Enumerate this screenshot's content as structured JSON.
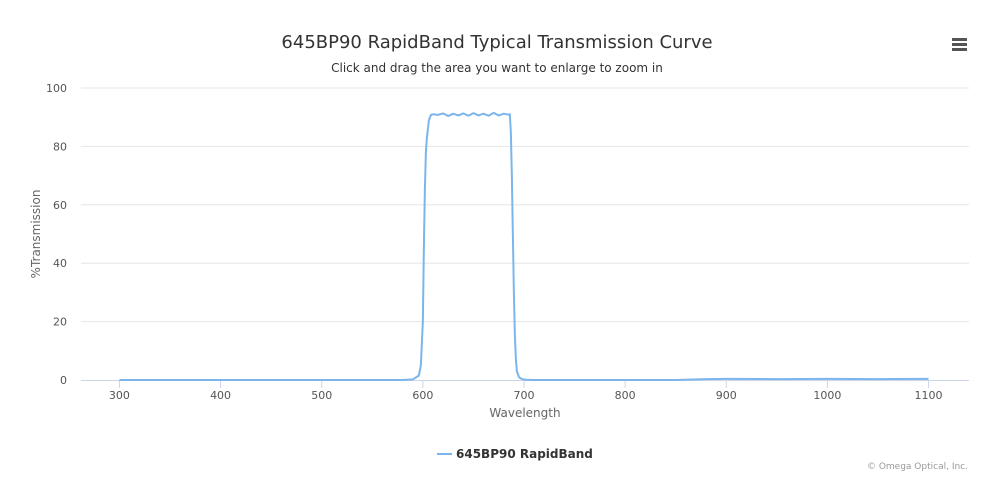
{
  "chart_data": {
    "type": "line",
    "title": "645BP90 RapidBand Typical Transmission Curve",
    "subtitle": "Click and drag the area you want to enlarge to zoom in",
    "xlabel": "Wavelength",
    "ylabel": "%Transmission",
    "xlim": [
      262,
      1140
    ],
    "ylim": [
      0,
      100
    ],
    "x_ticks": [
      300,
      400,
      500,
      600,
      700,
      800,
      900,
      1000,
      1100
    ],
    "y_ticks": [
      0,
      20,
      40,
      60,
      80,
      100
    ],
    "grid": "horizontal",
    "legend": "bottom-center",
    "series": [
      {
        "name": "645BP90 RapidBand",
        "color": "#7cb5ec",
        "x": [
          300,
          400,
          500,
          580,
          590,
          596,
          598,
          600,
          601,
          602,
          603,
          604,
          605,
          606,
          608,
          610,
          615,
          620,
          625,
          630,
          635,
          640,
          645,
          650,
          655,
          660,
          665,
          670,
          675,
          680,
          684,
          686,
          687,
          688,
          689,
          690,
          691,
          692,
          693,
          695,
          698,
          702,
          710,
          750,
          800,
          850,
          880,
          900,
          950,
          1000,
          1050,
          1100
        ],
        "y": [
          0,
          0,
          0,
          0,
          0.2,
          1.5,
          5,
          20,
          45,
          65,
          78,
          83,
          86,
          89,
          90.8,
          91,
          90.8,
          91.3,
          90.4,
          91.2,
          90.6,
          91.3,
          90.5,
          91.4,
          90.6,
          91.2,
          90.5,
          91.5,
          90.6,
          91.2,
          90.9,
          91,
          85,
          70,
          50,
          30,
          15,
          7,
          3,
          1,
          0.3,
          0.1,
          0,
          0,
          0,
          0,
          0.3,
          0.4,
          0.3,
          0.4,
          0.3,
          0.4
        ]
      }
    ]
  },
  "credits": "© Omega Optical, Inc.",
  "menu_icon": "hamburger-menu-icon"
}
